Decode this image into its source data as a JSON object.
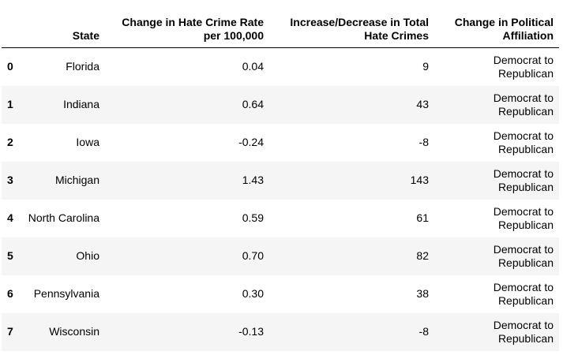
{
  "table": {
    "columns": [
      "",
      "State",
      "Change in Hate Crime Rate per 100,000",
      "Increase/Decrease in Total Hate Crimes",
      "Change in Political Affiliation"
    ],
    "rows": [
      {
        "index": "0",
        "state": "Florida",
        "rate": "0.04",
        "total": "9",
        "party": "Democrat to Republican"
      },
      {
        "index": "1",
        "state": "Indiana",
        "rate": "0.64",
        "total": "43",
        "party": "Democrat to Republican"
      },
      {
        "index": "2",
        "state": "Iowa",
        "rate": "-0.24",
        "total": "-8",
        "party": "Democrat to Republican"
      },
      {
        "index": "3",
        "state": "Michigan",
        "rate": "1.43",
        "total": "143",
        "party": "Democrat to Republican"
      },
      {
        "index": "4",
        "state": "North Carolina",
        "rate": "0.59",
        "total": "61",
        "party": "Democrat to Republican"
      },
      {
        "index": "5",
        "state": "Ohio",
        "rate": "0.70",
        "total": "82",
        "party": "Democrat to Republican"
      },
      {
        "index": "6",
        "state": "Pennsylvania",
        "rate": "0.30",
        "total": "38",
        "party": "Democrat to Republican"
      },
      {
        "index": "7",
        "state": "Wisconsin",
        "rate": "-0.13",
        "total": "-8",
        "party": "Democrat to Republican"
      }
    ]
  },
  "colors": {
    "stripe": "#f5f5f5",
    "header_rule": "#000000"
  }
}
